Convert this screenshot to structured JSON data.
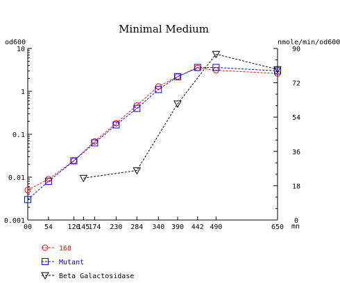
{
  "chart_data": {
    "type": "line",
    "title": "Minimal Medium",
    "ylabel_left": "od600",
    "ylabel_right": "nmole/min/od600",
    "xunit_label": "mn",
    "x_ticks": [
      0,
      54,
      120,
      145,
      174,
      230,
      284,
      340,
      390,
      442,
      490,
      650
    ],
    "x_tick_labels": [
      "00",
      "54",
      "120",
      "145",
      "174",
      "230",
      "284",
      "340",
      "390",
      "442",
      "490",
      "650"
    ],
    "xlim": [
      0,
      650
    ],
    "y_left_ticks": [
      0.001,
      0.01,
      0.1,
      1,
      10
    ],
    "y_left_tick_labels": [
      "0.001",
      "0.01",
      "0.1",
      "1",
      "10"
    ],
    "y_left_scale": "log",
    "y_left_lim": [
      0.001,
      10
    ],
    "y_right_ticks": [
      0,
      18,
      36,
      54,
      72,
      90
    ],
    "y_right_tick_labels": [
      "0",
      "18",
      "36",
      "54",
      "72",
      "90"
    ],
    "y_right_lim": [
      0,
      90
    ],
    "legend_position": "bottom-left",
    "series": [
      {
        "name": "168",
        "axis": "left",
        "color": "#ff0000",
        "marker": "circle",
        "x": [
          0,
          54,
          120,
          174,
          230,
          284,
          340,
          390,
          442,
          490,
          650
        ],
        "y": [
          0.005,
          0.009,
          0.024,
          0.068,
          0.18,
          0.47,
          1.3,
          2.2,
          3.5,
          3.1,
          2.6
        ]
      },
      {
        "name": "Mutant",
        "axis": "left",
        "color": "#0000ff",
        "marker": "square",
        "x": [
          0,
          54,
          120,
          174,
          230,
          284,
          340,
          390,
          442,
          490,
          650
        ],
        "y": [
          0.003,
          0.008,
          0.024,
          0.063,
          0.165,
          0.4,
          1.1,
          2.2,
          3.6,
          3.6,
          3.0
        ]
      },
      {
        "name": "Beta Galactosidase",
        "axis": "right",
        "color": "#000000",
        "marker": "triangle-down",
        "x": [
          145,
          284,
          390,
          490,
          650
        ],
        "y": [
          22,
          26,
          61,
          87,
          79
        ]
      }
    ]
  }
}
